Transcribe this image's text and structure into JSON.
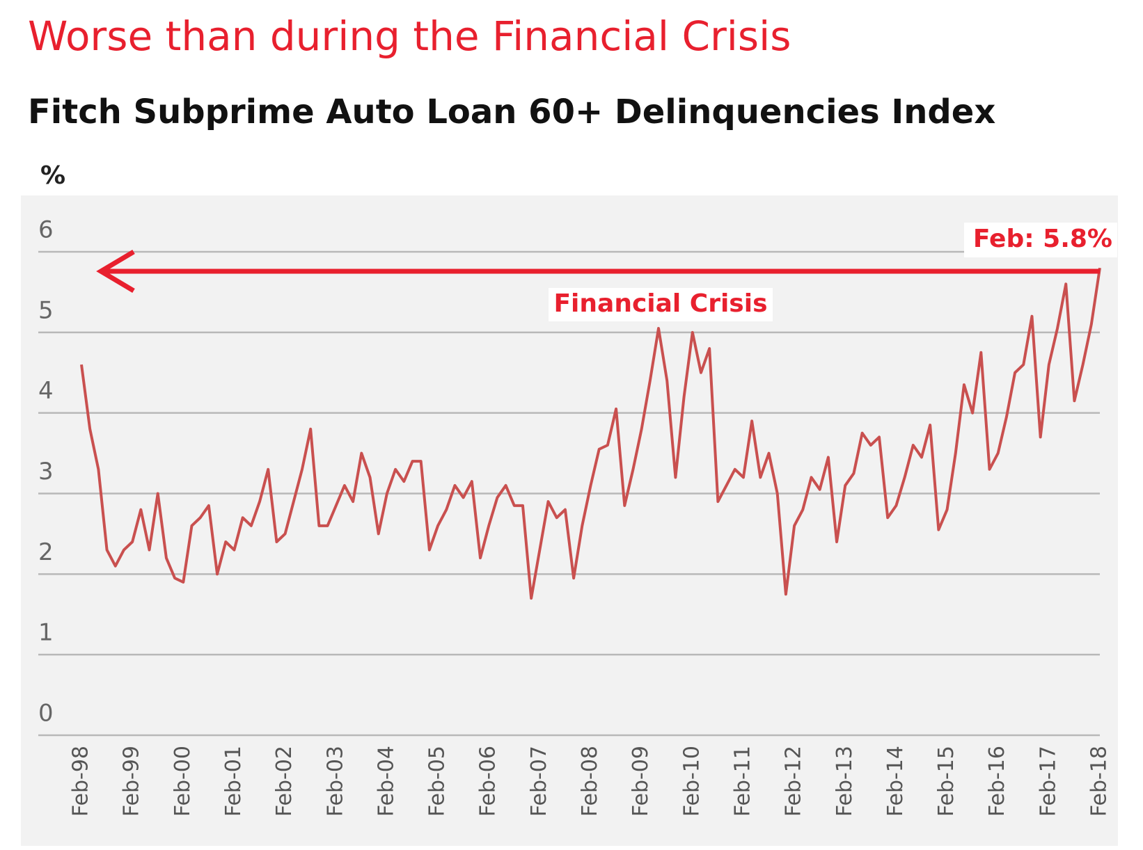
{
  "chart_data": {
    "type": "line",
    "title": "Worse than during the Financial Crisis",
    "subtitle": "Fitch Subprime Auto Loan 60+ Delinquencies Index",
    "y_axis_label": "%",
    "annotations": [
      "Feb: 5.8%",
      "Financial Crisis"
    ],
    "categories": [
      "Feb-98",
      null,
      null,
      null,
      null,
      null,
      "Feb-99",
      null,
      null,
      null,
      null,
      null,
      "Feb-00",
      null,
      null,
      null,
      null,
      null,
      "Feb-01",
      null,
      null,
      null,
      null,
      null,
      "Feb-02",
      null,
      null,
      null,
      null,
      null,
      "Feb-03",
      null,
      null,
      null,
      null,
      null,
      "Feb-04",
      null,
      null,
      null,
      null,
      null,
      "Feb-05",
      null,
      null,
      null,
      null,
      null,
      "Feb-06",
      null,
      null,
      null,
      null,
      null,
      "Feb-07",
      null,
      null,
      null,
      null,
      null,
      "Feb-08",
      null,
      null,
      null,
      null,
      null,
      "Feb-09",
      null,
      null,
      null,
      null,
      null,
      "Feb-10",
      null,
      null,
      null,
      null,
      null,
      "Feb-11",
      null,
      null,
      null,
      null,
      null,
      "Feb-12",
      null,
      null,
      null,
      null,
      null,
      "Feb-13",
      null,
      null,
      null,
      null,
      null,
      "Feb-14",
      null,
      null,
      null,
      null,
      null,
      "Feb-15",
      null,
      null,
      null,
      null,
      null,
      "Feb-16",
      null,
      null,
      null,
      null,
      null,
      "Feb-17",
      null,
      null,
      null,
      null,
      null,
      "Feb-18"
    ],
    "values": [
      4.6,
      3.8,
      3.3,
      2.3,
      2.1,
      2.3,
      2.4,
      2.8,
      2.3,
      3.0,
      2.2,
      1.95,
      1.9,
      2.6,
      2.7,
      2.85,
      2.0,
      2.4,
      2.3,
      2.7,
      2.6,
      2.9,
      3.3,
      2.4,
      2.5,
      2.9,
      3.3,
      3.8,
      2.6,
      2.6,
      2.85,
      3.1,
      2.9,
      3.5,
      3.2,
      2.5,
      3.0,
      3.3,
      3.15,
      3.4,
      3.4,
      2.3,
      2.6,
      2.8,
      3.1,
      2.95,
      3.15,
      2.2,
      2.6,
      2.95,
      3.1,
      2.85,
      2.85,
      1.7,
      2.3,
      2.9,
      2.7,
      2.8,
      1.95,
      2.6,
      3.1,
      3.55,
      3.6,
      4.05,
      2.85,
      3.3,
      3.8,
      4.4,
      5.05,
      4.4,
      3.2,
      4.2,
      5.0,
      4.5,
      4.8,
      2.9,
      3.1,
      3.3,
      3.2,
      3.9,
      3.2,
      3.5,
      3.0,
      1.75,
      2.6,
      2.8,
      3.2,
      3.05,
      3.45,
      2.4,
      3.1,
      3.25,
      3.75,
      3.6,
      3.7,
      2.7,
      2.85,
      3.2,
      3.6,
      3.45,
      3.85,
      2.55,
      2.8,
      3.5,
      4.35,
      4.0,
      4.75,
      3.3,
      3.5,
      3.95,
      4.5,
      4.6,
      5.2,
      3.7,
      4.6,
      5.05,
      5.6,
      4.15,
      4.6,
      5.1,
      5.8
    ],
    "color": "#c9504f",
    "ylim": [
      0,
      6
    ],
    "yticks": [
      0,
      1,
      2,
      3,
      4,
      5,
      6
    ],
    "grid": true
  }
}
